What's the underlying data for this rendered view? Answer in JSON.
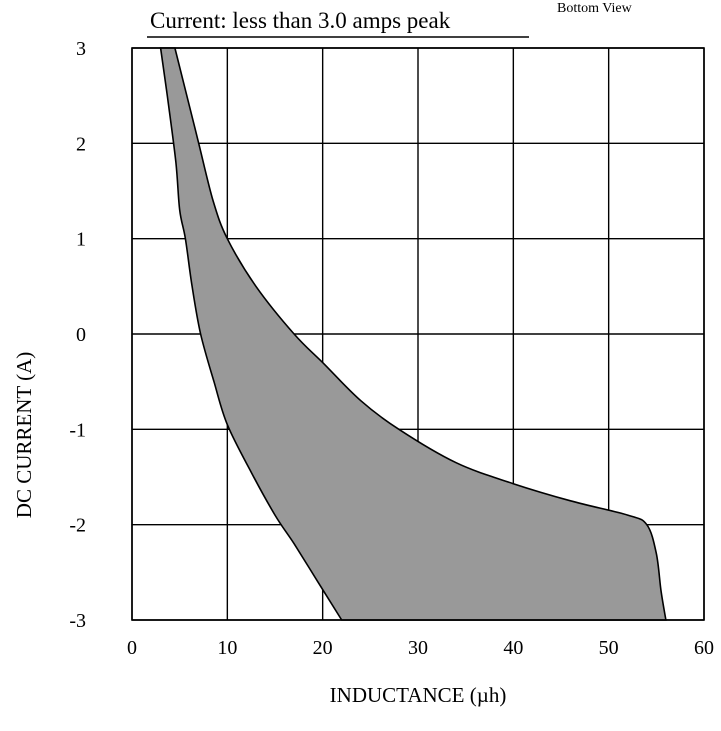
{
  "chart_data": {
    "type": "area",
    "title": "Current:  less than 3.0 amps peak",
    "corner_note": "Bottom View",
    "xlabel": "INDUCTANCE (µh)",
    "ylabel": "DC CURRENT (A)",
    "xlim": [
      0,
      60
    ],
    "ylim": [
      -3,
      3
    ],
    "x_ticks": [
      0,
      10,
      20,
      30,
      40,
      50,
      60
    ],
    "y_ticks": [
      3,
      2,
      1,
      0,
      -1,
      -2,
      -3
    ],
    "grid": true,
    "fill_color": "#999999",
    "line_color": "#000000",
    "series": [
      {
        "role": "upper_boundary",
        "points": [
          [
            4.5,
            3.0
          ],
          [
            6.0,
            2.4
          ],
          [
            7.0,
            2.0
          ],
          [
            8.5,
            1.4
          ],
          [
            10.0,
            1.0
          ],
          [
            13.0,
            0.5
          ],
          [
            17.0,
            0.0
          ],
          [
            20.0,
            -0.3
          ],
          [
            24.0,
            -0.7
          ],
          [
            28.0,
            -1.0
          ],
          [
            34.0,
            -1.35
          ],
          [
            40.0,
            -1.57
          ],
          [
            46.0,
            -1.75
          ],
          [
            52.0,
            -1.9
          ],
          [
            54.0,
            -2.0
          ],
          [
            55.0,
            -2.3
          ],
          [
            55.5,
            -2.7
          ],
          [
            56.0,
            -3.0
          ]
        ]
      },
      {
        "role": "lower_boundary",
        "points": [
          [
            3.0,
            3.0
          ],
          [
            3.7,
            2.5
          ],
          [
            4.6,
            1.8
          ],
          [
            5.0,
            1.3
          ],
          [
            5.6,
            1.0
          ],
          [
            6.3,
            0.5
          ],
          [
            7.2,
            0.0
          ],
          [
            8.6,
            -0.5
          ],
          [
            10.0,
            -0.95
          ],
          [
            12.5,
            -1.45
          ],
          [
            15.0,
            -1.9
          ],
          [
            17.0,
            -2.2
          ],
          [
            19.5,
            -2.6
          ],
          [
            22.0,
            -3.0
          ]
        ]
      }
    ]
  }
}
